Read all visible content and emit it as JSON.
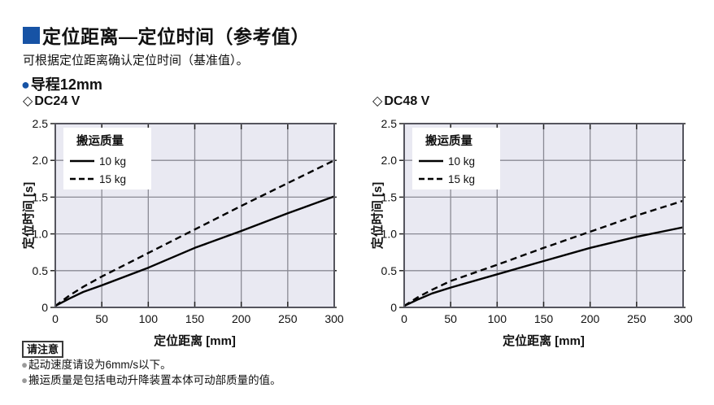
{
  "header": {
    "title": "定位距离—定位时间（参考值）",
    "subtitle": "可根据定位距离确认定位时间（基准值）。",
    "lead_bullet": "●",
    "lead": "导程12mm"
  },
  "colors": {
    "accent_blue": "#1753a5",
    "plot_bg": "#e9e9f2",
    "grid": "#8a8a94",
    "plot_border": "#55555e",
    "curve": "#000000",
    "note_bullet": "#9a9a9a"
  },
  "chart_data": [
    {
      "type": "line",
      "marker": "◇",
      "title": "DC24 V",
      "xlabel": "定位距离 [mm]",
      "ylabel": "定位时间 [s]",
      "xlim": [
        0,
        300
      ],
      "ylim": [
        0,
        2.5
      ],
      "xticks": [
        0,
        50,
        100,
        150,
        200,
        250,
        300
      ],
      "yticks": [
        0,
        0.5,
        1,
        1.5,
        2,
        2.5
      ],
      "grid": true,
      "legend": {
        "title": "搬运质量",
        "position": "top-left"
      },
      "x": [
        0,
        15,
        30,
        50,
        100,
        150,
        200,
        250,
        300
      ],
      "series": [
        {
          "name": "10 kg",
          "line": "solid",
          "values": [
            0.02,
            0.12,
            0.21,
            0.3,
            0.54,
            0.81,
            1.04,
            1.28,
            1.51
          ]
        },
        {
          "name": "15 kg",
          "line": "dashed",
          "values": [
            0.02,
            0.16,
            0.28,
            0.42,
            0.74,
            1.06,
            1.38,
            1.69,
            2.0
          ]
        }
      ]
    },
    {
      "type": "line",
      "marker": "◇",
      "title": "DC48 V",
      "xlabel": "定位距离 [mm]",
      "ylabel": "定位时间 [s]",
      "xlim": [
        0,
        300
      ],
      "ylim": [
        0,
        2.5
      ],
      "xticks": [
        0,
        50,
        100,
        150,
        200,
        250,
        300
      ],
      "yticks": [
        0,
        0.5,
        1,
        1.5,
        2,
        2.5
      ],
      "grid": true,
      "legend": {
        "title": "搬运质量",
        "position": "top-left"
      },
      "x": [
        0,
        15,
        30,
        50,
        100,
        150,
        200,
        250,
        300
      ],
      "series": [
        {
          "name": "10 kg",
          "line": "solid",
          "values": [
            0.02,
            0.11,
            0.19,
            0.27,
            0.45,
            0.63,
            0.81,
            0.96,
            1.09
          ]
        },
        {
          "name": "15 kg",
          "line": "dashed",
          "values": [
            0.02,
            0.14,
            0.24,
            0.36,
            0.58,
            0.81,
            1.03,
            1.25,
            1.45
          ]
        }
      ]
    }
  ],
  "notes": {
    "box_label": "请注意",
    "bullet": "●",
    "items": [
      "起动速度请设为6mm/s以下。",
      "搬运质量是包括电动升降装置本体可动部质量的值。"
    ]
  }
}
